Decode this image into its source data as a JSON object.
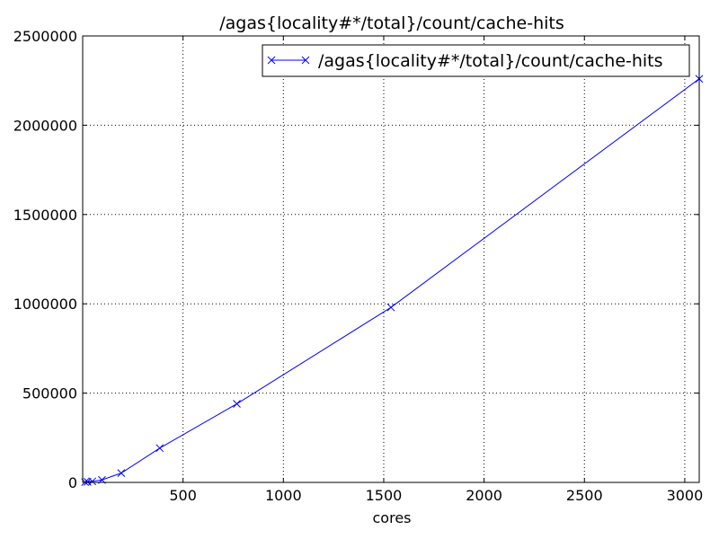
{
  "chart_data": {
    "type": "line",
    "title": "/agas{locality#*/total}/count/cache-hits",
    "xlabel": "cores",
    "ylabel": "",
    "xlim": [
      0,
      3072
    ],
    "ylim": [
      0,
      2500000
    ],
    "x_ticks": [
      500,
      1000,
      1500,
      2000,
      2500,
      3000
    ],
    "y_ticks": [
      0,
      500000,
      1000000,
      1500000,
      2000000,
      2500000
    ],
    "grid": true,
    "legend_position": "top-right",
    "colors": {
      "series": "#0000ff",
      "grid": "#000000",
      "axes": "#000000"
    },
    "series": [
      {
        "name": "/agas{locality#*/total}/count/cache-hits",
        "marker": "x",
        "x": [
          12,
          24,
          48,
          96,
          192,
          384,
          768,
          1536,
          3072
        ],
        "y": [
          1500,
          3000,
          6000,
          14000,
          52000,
          192000,
          440000,
          980000,
          2260000
        ]
      }
    ]
  }
}
